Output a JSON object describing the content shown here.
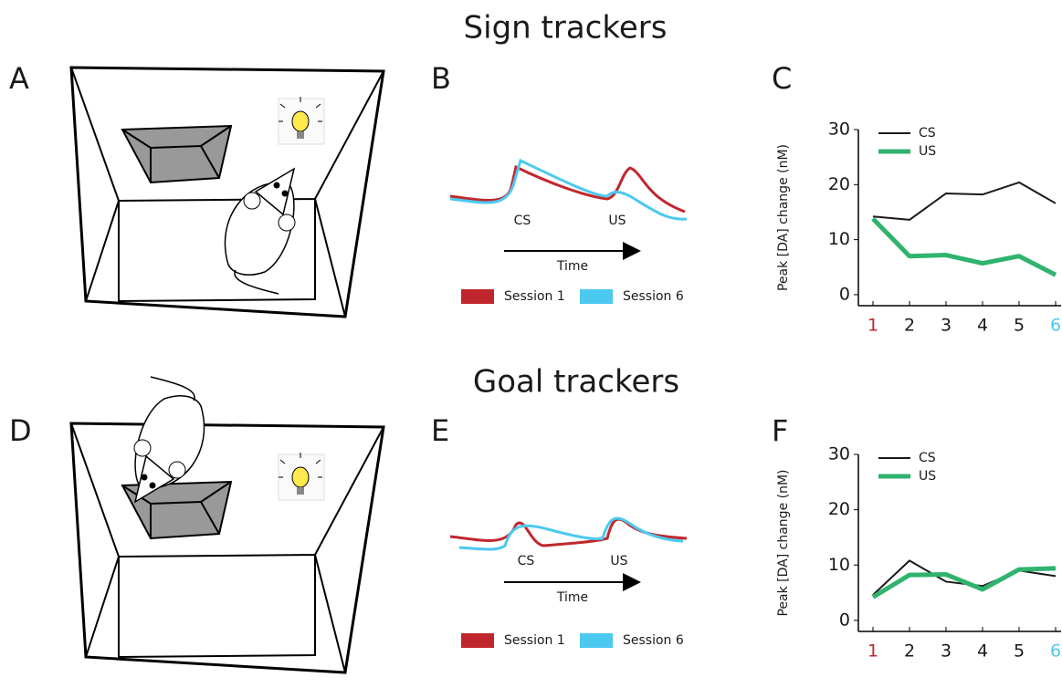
{
  "figure": {
    "rows": [
      {
        "title": "Sign trackers",
        "panels": [
          "A",
          "B",
          "C"
        ]
      },
      {
        "title": "Goal trackers",
        "panels": [
          "D",
          "E",
          "F"
        ]
      }
    ],
    "schematics": [
      {
        "cs_label": "CS",
        "us_label": "US",
        "x_label": "Time",
        "legend": [
          "Session 1",
          "Session 6"
        ],
        "colors": [
          "#c0272d",
          "#4cc9f0"
        ]
      },
      {
        "cs_label": "CS",
        "us_label": "US",
        "x_label": "Time",
        "legend": [
          "Session 1",
          "Session 6"
        ],
        "colors": [
          "#c0272d",
          "#4cc9f0"
        ]
      }
    ]
  },
  "chart_data": [
    {
      "type": "line",
      "ylabel": "Peak [DA] change (nM)",
      "categories": [
        "1",
        "2",
        "3",
        "4",
        "5",
        "6"
      ],
      "category_colors": [
        "#c0272d",
        "#1a1a1a",
        "#1a1a1a",
        "#1a1a1a",
        "#1a1a1a",
        "#4cc9f0"
      ],
      "series": [
        {
          "name": "CS",
          "color": "#1a1a1a",
          "width": 2,
          "values": [
            14.2,
            13.6,
            18.4,
            18.2,
            20.4,
            16.6
          ]
        },
        {
          "name": "US",
          "color": "#2fb36e",
          "width": 5,
          "values": [
            13.8,
            7.0,
            7.2,
            5.7,
            7.0,
            3.6
          ]
        }
      ],
      "ylim": [
        -2,
        30
      ],
      "yticks": [
        0,
        10,
        20,
        30
      ],
      "legend": "upper left"
    },
    {
      "type": "line",
      "ylabel": "Peak [DA] change (nM)",
      "categories": [
        "1",
        "2",
        "3",
        "4",
        "5",
        "6"
      ],
      "category_colors": [
        "#c0272d",
        "#1a1a1a",
        "#1a1a1a",
        "#1a1a1a",
        "#1a1a1a",
        "#4cc9f0"
      ],
      "series": [
        {
          "name": "CS",
          "color": "#1a1a1a",
          "width": 2,
          "values": [
            4.6,
            10.8,
            7.0,
            6.2,
            9.0,
            8.0
          ]
        },
        {
          "name": "US",
          "color": "#2fb36e",
          "width": 5,
          "values": [
            4.2,
            8.2,
            8.3,
            5.6,
            9.2,
            9.4
          ]
        }
      ],
      "ylim": [
        -2,
        30
      ],
      "yticks": [
        0,
        10,
        20,
        30
      ],
      "legend": "upper left"
    }
  ]
}
